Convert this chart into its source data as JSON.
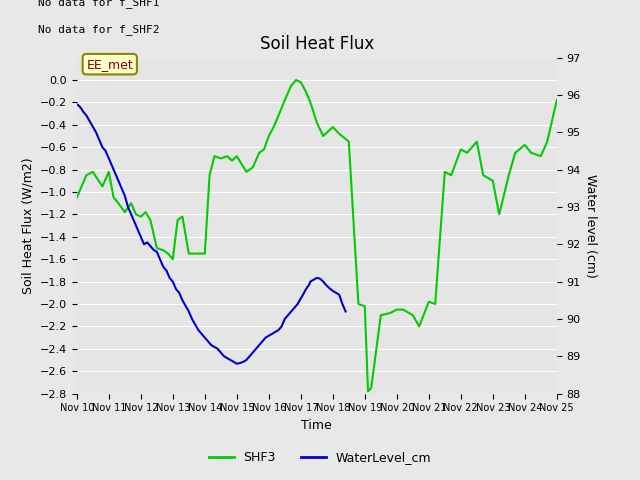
{
  "title": "Soil Heat Flux",
  "xlabel": "Time",
  "ylabel_left": "Soil Heat Flux (W/m2)",
  "ylabel_right": "Water level (cm)",
  "text_top_left_line1": "No data for f_SHF1",
  "text_top_left_line2": "No data for f_SHF2",
  "annotation_box": "EE_met",
  "ylim_left": [
    -2.8,
    0.2
  ],
  "ylim_right": [
    88.0,
    97.0
  ],
  "yticks_left": [
    0.0,
    -0.2,
    -0.4,
    -0.6,
    -0.8,
    -1.0,
    -1.2,
    -1.4,
    -1.6,
    -1.8,
    -2.0,
    -2.2,
    -2.4,
    -2.6,
    -2.8
  ],
  "yticks_right": [
    88.0,
    89.0,
    90.0,
    91.0,
    92.0,
    93.0,
    94.0,
    95.0,
    96.0,
    97.0
  ],
  "xtick_labels": [
    "Nov 10",
    "Nov 11",
    "Nov 12",
    "Nov 13",
    "Nov 14",
    "Nov 15",
    "Nov 16",
    "Nov 17",
    "Nov 18",
    "Nov 19",
    "Nov 20",
    "Nov 21",
    "Nov 22",
    "Nov 23",
    "Nov 24",
    "Nov 25"
  ],
  "background_color": "#e8e8e8",
  "plot_bg_color": "#e5e5e5",
  "grid_color": "#ffffff",
  "shf3_color": "#00cc00",
  "water_color": "#0000cc",
  "legend_entries": [
    "SHF3",
    "WaterLevel_cm"
  ],
  "shf3_x": [
    10,
    10.3,
    10.5,
    10.8,
    11.0,
    11.15,
    11.3,
    11.5,
    11.7,
    11.85,
    12.0,
    12.15,
    12.3,
    12.5,
    12.7,
    12.85,
    13.0,
    13.15,
    13.3,
    13.5,
    13.7,
    14.0,
    14.15,
    14.3,
    14.5,
    14.7,
    14.85,
    15.0,
    15.15,
    15.3,
    15.5,
    15.7,
    15.85,
    16.0,
    16.15,
    16.3,
    16.5,
    16.7,
    16.85,
    17.0,
    17.15,
    17.3,
    17.5,
    17.7,
    18.0,
    18.2,
    18.5,
    18.8,
    19.0,
    19.1,
    19.2,
    19.5,
    19.8,
    20.0,
    20.2,
    20.5,
    20.7,
    21.0,
    21.2,
    21.5,
    21.7,
    22.0,
    22.2,
    22.5,
    22.7,
    23.0,
    23.2,
    23.5,
    23.7,
    24.0,
    24.2,
    24.5,
    24.7,
    25.0
  ],
  "shf3_y": [
    -1.05,
    -0.85,
    -0.82,
    -0.95,
    -0.82,
    -1.05,
    -1.1,
    -1.18,
    -1.1,
    -1.2,
    -1.22,
    -1.18,
    -1.25,
    -1.5,
    -1.52,
    -1.55,
    -1.6,
    -1.25,
    -1.22,
    -1.55,
    -1.55,
    -1.55,
    -0.85,
    -0.68,
    -0.7,
    -0.68,
    -0.72,
    -0.68,
    -0.75,
    -0.82,
    -0.78,
    -0.65,
    -0.62,
    -0.5,
    -0.42,
    -0.32,
    -0.18,
    -0.05,
    0.0,
    -0.02,
    -0.1,
    -0.2,
    -0.38,
    -0.5,
    -0.42,
    -0.48,
    -0.55,
    -2.0,
    -2.02,
    -2.78,
    -2.75,
    -2.1,
    -2.08,
    -2.05,
    -2.05,
    -2.1,
    -2.2,
    -1.98,
    -2.0,
    -0.82,
    -0.85,
    -0.62,
    -0.65,
    -0.55,
    -0.85,
    -0.9,
    -1.2,
    -0.85,
    -0.65,
    -0.58,
    -0.65,
    -0.68,
    -0.55,
    -0.18
  ],
  "water_x": [
    10.0,
    10.05,
    10.1,
    10.15,
    10.2,
    10.3,
    10.4,
    10.5,
    10.6,
    10.7,
    10.8,
    10.9,
    11.0,
    11.1,
    11.2,
    11.3,
    11.4,
    11.5,
    11.6,
    11.7,
    11.8,
    11.9,
    12.0,
    12.1,
    12.2,
    12.3,
    12.4,
    12.5,
    12.6,
    12.7,
    12.8,
    12.9,
    13.0,
    13.1,
    13.2,
    13.3,
    13.4,
    13.5,
    13.6,
    13.7,
    13.8,
    13.9,
    14.0,
    14.1,
    14.2,
    14.3,
    14.4,
    14.5,
    14.6,
    14.7,
    14.8,
    14.9,
    15.0,
    15.1,
    15.2,
    15.3,
    15.4,
    15.5,
    15.6,
    15.7,
    15.8,
    15.9,
    16.0,
    16.1,
    16.2,
    16.3,
    16.4,
    16.5,
    16.6,
    16.7,
    16.8,
    16.9,
    17.0,
    17.05,
    17.1,
    17.15,
    17.2,
    17.25,
    17.3,
    17.4,
    17.5,
    17.6,
    17.7,
    17.8,
    17.9,
    18.0,
    18.1,
    18.2,
    18.3,
    18.4
  ],
  "water_y": [
    95.75,
    95.72,
    95.68,
    95.62,
    95.55,
    95.45,
    95.3,
    95.15,
    95.0,
    94.8,
    94.6,
    94.5,
    94.3,
    94.1,
    93.9,
    93.7,
    93.5,
    93.3,
    93.0,
    92.8,
    92.6,
    92.4,
    92.2,
    92.0,
    92.05,
    91.95,
    91.85,
    91.8,
    91.6,
    91.4,
    91.3,
    91.1,
    91.0,
    90.8,
    90.7,
    90.5,
    90.35,
    90.2,
    90.0,
    89.85,
    89.7,
    89.6,
    89.5,
    89.4,
    89.3,
    89.25,
    89.2,
    89.1,
    89.0,
    88.95,
    88.9,
    88.85,
    88.8,
    88.82,
    88.85,
    88.9,
    89.0,
    89.1,
    89.2,
    89.3,
    89.4,
    89.5,
    89.55,
    89.6,
    89.65,
    89.7,
    89.8,
    90.0,
    90.1,
    90.2,
    90.3,
    90.4,
    90.55,
    90.62,
    90.7,
    90.78,
    90.85,
    90.9,
    91.0,
    91.05,
    91.1,
    91.08,
    91.0,
    90.9,
    90.82,
    90.75,
    90.7,
    90.65,
    90.4,
    90.2
  ]
}
